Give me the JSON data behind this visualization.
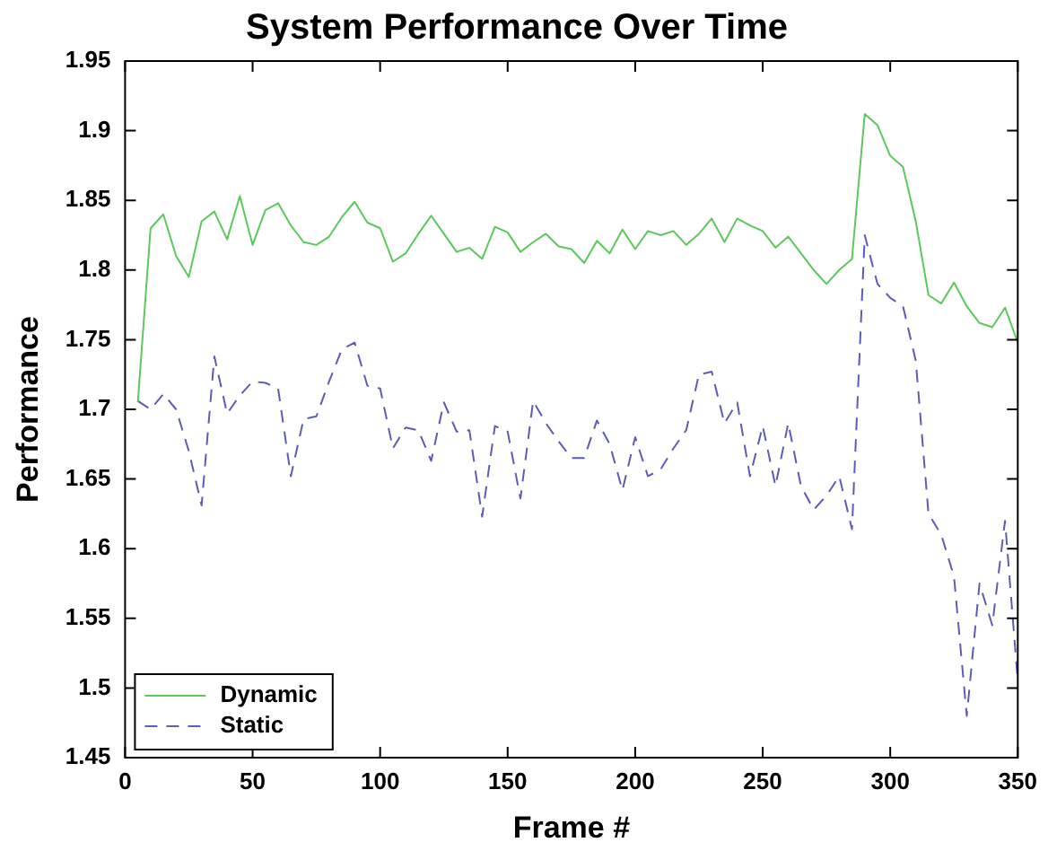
{
  "chart_data": {
    "type": "line",
    "title": "System Performance Over Time",
    "xlabel": "Frame #",
    "ylabel": "Performance",
    "x": [
      5,
      10,
      15,
      20,
      25,
      30,
      35,
      40,
      45,
      50,
      55,
      60,
      65,
      70,
      75,
      80,
      85,
      90,
      95,
      100,
      105,
      110,
      115,
      120,
      125,
      130,
      135,
      140,
      145,
      150,
      155,
      160,
      165,
      170,
      175,
      180,
      185,
      190,
      195,
      200,
      205,
      210,
      215,
      220,
      225,
      230,
      235,
      240,
      245,
      250,
      255,
      260,
      265,
      270,
      275,
      280,
      285,
      290,
      295,
      300,
      305,
      310,
      315,
      320,
      325,
      330,
      335,
      340,
      345,
      350
    ],
    "series": [
      {
        "name": "Dynamic",
        "color": "#5cc85c",
        "line_style": "solid",
        "values": [
          1.705,
          1.83,
          1.84,
          1.81,
          1.795,
          1.835,
          1.842,
          1.822,
          1.853,
          1.818,
          1.843,
          1.848,
          1.832,
          1.82,
          1.818,
          1.824,
          1.838,
          1.849,
          1.834,
          1.83,
          1.806,
          1.812,
          1.826,
          1.839,
          1.826,
          1.813,
          1.816,
          1.808,
          1.831,
          1.827,
          1.813,
          1.82,
          1.826,
          1.817,
          1.815,
          1.805,
          1.821,
          1.812,
          1.829,
          1.815,
          1.828,
          1.825,
          1.828,
          1.818,
          1.826,
          1.837,
          1.82,
          1.837,
          1.832,
          1.828,
          1.816,
          1.824,
          1.812,
          1.8,
          1.79,
          1.8,
          1.808,
          1.912,
          1.904,
          1.882,
          1.874,
          1.835,
          1.782,
          1.776,
          1.791,
          1.774,
          1.762,
          1.759,
          1.773,
          1.748
        ]
      },
      {
        "name": "Static",
        "color": "#5b5bb8",
        "line_style": "dashed",
        "values": [
          1.706,
          1.7,
          1.711,
          1.7,
          1.67,
          1.631,
          1.738,
          1.697,
          1.71,
          1.72,
          1.719,
          1.715,
          1.652,
          1.693,
          1.695,
          1.72,
          1.743,
          1.748,
          1.717,
          1.715,
          1.672,
          1.687,
          1.685,
          1.663,
          1.705,
          1.684,
          1.685,
          1.623,
          1.688,
          1.684,
          1.636,
          1.706,
          1.69,
          1.677,
          1.665,
          1.665,
          1.692,
          1.675,
          1.642,
          1.68,
          1.652,
          1.657,
          1.672,
          1.685,
          1.725,
          1.727,
          1.69,
          1.705,
          1.652,
          1.688,
          1.645,
          1.69,
          1.645,
          1.628,
          1.638,
          1.652,
          1.614,
          1.825,
          1.79,
          1.78,
          1.774,
          1.735,
          1.625,
          1.61,
          1.58,
          1.48,
          1.575,
          1.545,
          1.62,
          1.505
        ]
      }
    ],
    "xlim": [
      0,
      350
    ],
    "xticks": [
      0,
      50,
      100,
      150,
      200,
      250,
      300,
      350
    ],
    "ylim": [
      1.45,
      1.95
    ],
    "yticks": [
      1.45,
      1.5,
      1.55,
      1.6,
      1.65,
      1.7,
      1.75,
      1.8,
      1.85,
      1.9,
      1.95
    ],
    "grid": false,
    "legend": "bottom left",
    "marker": "none"
  }
}
